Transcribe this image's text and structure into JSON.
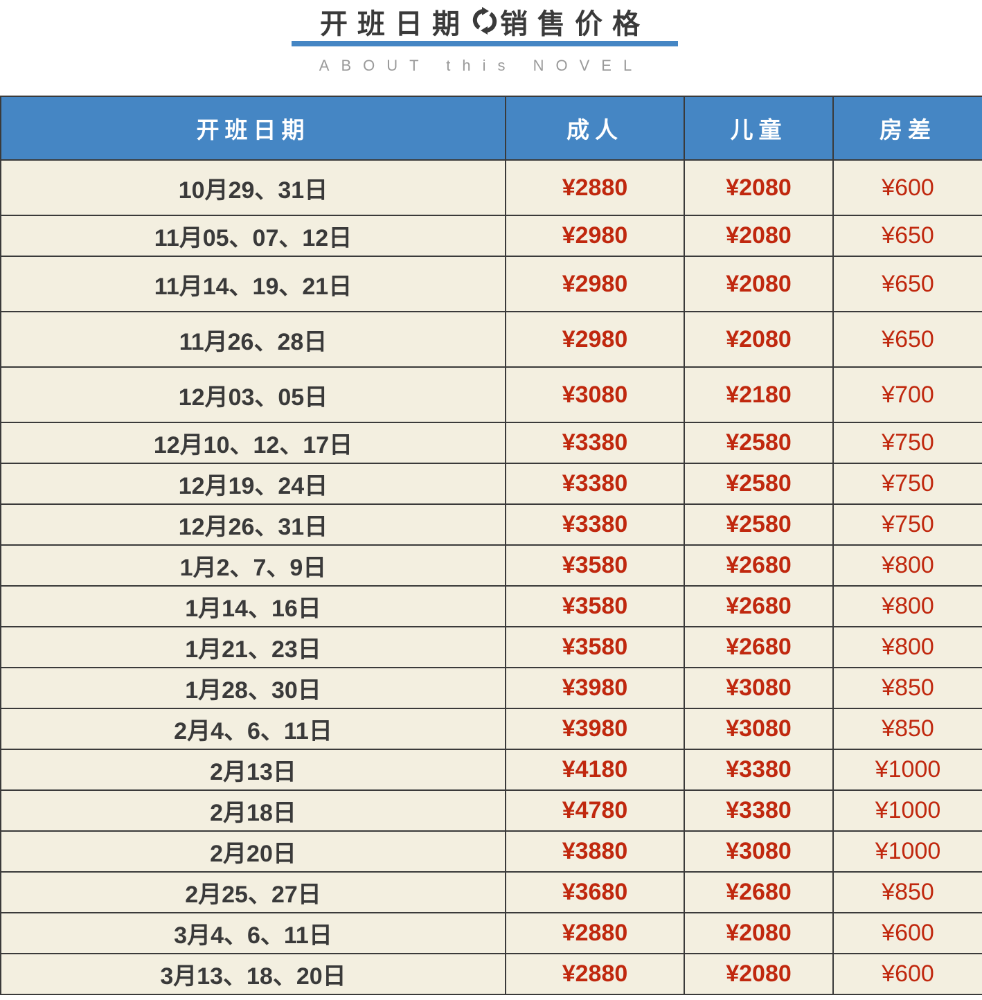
{
  "header": {
    "title_left": "开班日期",
    "title_right": "销售价格",
    "title_icon": "refresh-icon",
    "subtitle": "ABOUT this NOVEL"
  },
  "colors": {
    "accent": "#4586c4",
    "price": "#c0280e",
    "row_bg": "#f3efe0"
  },
  "table": {
    "columns": [
      "开班日期",
      "成人",
      "儿童",
      "房差"
    ],
    "rows": [
      {
        "date": "10月29、31日",
        "adult": "¥2880",
        "child": "¥2080",
        "diff": "¥600",
        "size": "tall"
      },
      {
        "date": "11月05、07、12日",
        "adult": "¥2980",
        "child": "¥2080",
        "diff": "¥650",
        "size": "short"
      },
      {
        "date": "11月14、19、21日",
        "adult": "¥2980",
        "child": "¥2080",
        "diff": "¥650",
        "size": "tall"
      },
      {
        "date": "11月26、28日",
        "adult": "¥2980",
        "child": "¥2080",
        "diff": "¥650",
        "size": "tall"
      },
      {
        "date": "12月03、05日",
        "adult": "¥3080",
        "child": "¥2180",
        "diff": "¥700",
        "size": "tall"
      },
      {
        "date": "12月10、12、17日",
        "adult": "¥3380",
        "child": "¥2580",
        "diff": "¥750",
        "size": "short"
      },
      {
        "date": "12月19、24日",
        "adult": "¥3380",
        "child": "¥2580",
        "diff": "¥750",
        "size": "short"
      },
      {
        "date": "12月26、31日",
        "adult": "¥3380",
        "child": "¥2580",
        "diff": "¥750",
        "size": "short"
      },
      {
        "date": "1月2、7、9日",
        "adult": "¥3580",
        "child": "¥2680",
        "diff": "¥800",
        "size": "short"
      },
      {
        "date": "1月14、16日",
        "adult": "¥3580",
        "child": "¥2680",
        "diff": "¥800",
        "size": "short"
      },
      {
        "date": "1月21、23日",
        "adult": "¥3580",
        "child": "¥2680",
        "diff": "¥800",
        "size": "short"
      },
      {
        "date": "1月28、30日",
        "adult": "¥3980",
        "child": "¥3080",
        "diff": "¥850",
        "size": "short"
      },
      {
        "date": "2月4、6、11日",
        "adult": "¥3980",
        "child": "¥3080",
        "diff": "¥850",
        "size": "short"
      },
      {
        "date": "2月13日",
        "adult": "¥4180",
        "child": "¥3380",
        "diff": "¥1000",
        "size": "short"
      },
      {
        "date": "2月18日",
        "adult": "¥4780",
        "child": "¥3380",
        "diff": "¥1000",
        "size": "short"
      },
      {
        "date": "2月20日",
        "adult": "¥3880",
        "child": "¥3080",
        "diff": "¥1000",
        "size": "short"
      },
      {
        "date": "2月25、27日",
        "adult": "¥3680",
        "child": "¥2680",
        "diff": "¥850",
        "size": "short"
      },
      {
        "date": "3月4、6、11日",
        "adult": "¥2880",
        "child": "¥2080",
        "diff": "¥600",
        "size": "short"
      },
      {
        "date": "3月13、18、20日",
        "adult": "¥2880",
        "child": "¥2080",
        "diff": "¥600",
        "size": "short"
      }
    ]
  }
}
